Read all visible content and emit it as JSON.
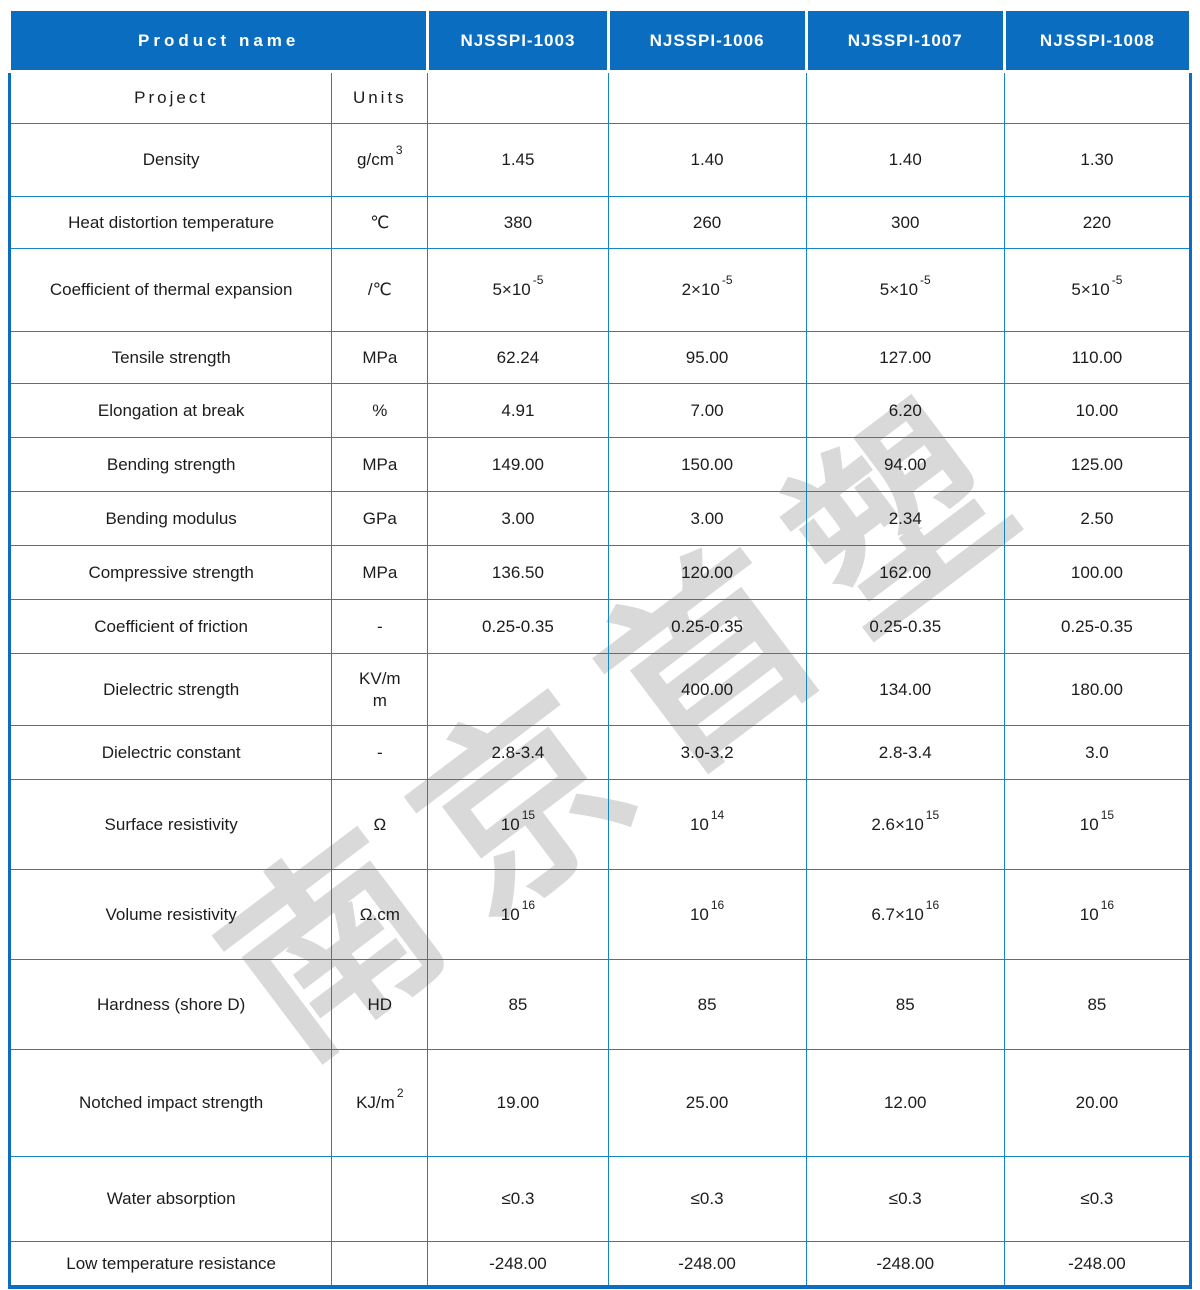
{
  "table": {
    "header": {
      "product_name_label": "Product name",
      "products": [
        "NJSSPI-1003",
        "NJSSPI-1006",
        "NJSSPI-1007",
        "NJSSPI-1008"
      ],
      "project_label": "Project",
      "units_label": "Units"
    },
    "rows": [
      {
        "label": "Density",
        "unit": {
          "t": "g/cm",
          "sup": "3"
        },
        "values": [
          "1.45",
          "1.40",
          "1.40",
          "1.30"
        ]
      },
      {
        "label": "Heat distortion temperature",
        "unit": {
          "t": "℃"
        },
        "values": [
          "380",
          "260",
          "300",
          "220"
        ]
      },
      {
        "label": "Coefficient of thermal expansion",
        "unit": {
          "t": "/℃"
        },
        "values": [
          {
            "t": "5×10",
            "sup": "-5"
          },
          {
            "t": "2×10",
            "sup": "-5"
          },
          {
            "t": "5×10",
            "sup": "-5"
          },
          {
            "t": "5×10",
            "sup": "-5"
          }
        ]
      },
      {
        "label": "Tensile strength",
        "unit": {
          "t": "MPa"
        },
        "values": [
          "62.24",
          "95.00",
          "127.00",
          "110.00"
        ]
      },
      {
        "label": "Elongation at break",
        "unit": {
          "t": "%"
        },
        "values": [
          "4.91",
          "7.00",
          "6.20",
          "10.00"
        ]
      },
      {
        "label": "Bending strength",
        "unit": {
          "t": "MPa"
        },
        "values": [
          "149.00",
          "150.00",
          "94.00",
          "125.00"
        ]
      },
      {
        "label": "Bending modulus",
        "unit": {
          "t": "GPa"
        },
        "values": [
          "3.00",
          "3.00",
          "2.34",
          "2.50"
        ]
      },
      {
        "label": "Compressive strength",
        "unit": {
          "t": "MPa"
        },
        "values": [
          "136.50",
          "120.00",
          "162.00",
          "100.00"
        ]
      },
      {
        "label": "Coefficient of friction",
        "unit": {
          "t": "-"
        },
        "values": [
          "0.25-0.35",
          "0.25-0.35",
          "0.25-0.35",
          "0.25-0.35"
        ]
      },
      {
        "label": "Dielectric strength",
        "unit": {
          "t": "KV/m\nm"
        },
        "values": [
          "",
          "400.00",
          "134.00",
          "180.00"
        ]
      },
      {
        "label": "Dielectric constant",
        "unit": {
          "t": "-"
        },
        "values": [
          "2.8-3.4",
          "3.0-3.2",
          "2.8-3.4",
          "3.0"
        ]
      },
      {
        "label": "Surface resistivity",
        "unit": {
          "t": "Ω"
        },
        "values": [
          {
            "t": "10",
            "sup": "15"
          },
          {
            "t": "10",
            "sup": "14"
          },
          {
            "t": "2.6×10",
            "sup": "15"
          },
          {
            "t": "10",
            "sup": "15"
          }
        ]
      },
      {
        "label": "Volume resistivity",
        "unit": {
          "t": "Ω.cm"
        },
        "values": [
          {
            "t": "10",
            "sup": "16"
          },
          {
            "t": "10",
            "sup": "16"
          },
          {
            "t": "6.7×10",
            "sup": "16"
          },
          {
            "t": "10",
            "sup": "16"
          }
        ]
      },
      {
        "label": "Hardness (shore D)",
        "unit": {
          "t": "HD"
        },
        "values": [
          "85",
          "85",
          "85",
          "85"
        ]
      },
      {
        "label": "Notched impact strength",
        "unit": {
          "t": "KJ/m",
          "sup": "2"
        },
        "values": [
          "19.00",
          "25.00",
          "12.00",
          "20.00"
        ]
      },
      {
        "label": "Water absorption",
        "unit": {
          "t": ""
        },
        "values": [
          "≤0.3",
          "≤0.3",
          "≤0.3",
          "≤0.3"
        ]
      },
      {
        "label": "Low temperature resistance",
        "unit": {
          "t": ""
        },
        "values": [
          "-248.00",
          "-248.00",
          "-248.00",
          "-248.00"
        ]
      }
    ]
  },
  "watermark": {
    "text": "南京首塑",
    "color": "#d9d9d9"
  },
  "colors": {
    "header_bg": "#0a6dbf",
    "header_text": "#ffffff",
    "grid_border": "#1486c8",
    "outer_border": "#0a6dbf",
    "body_text": "#1c1c1c"
  }
}
